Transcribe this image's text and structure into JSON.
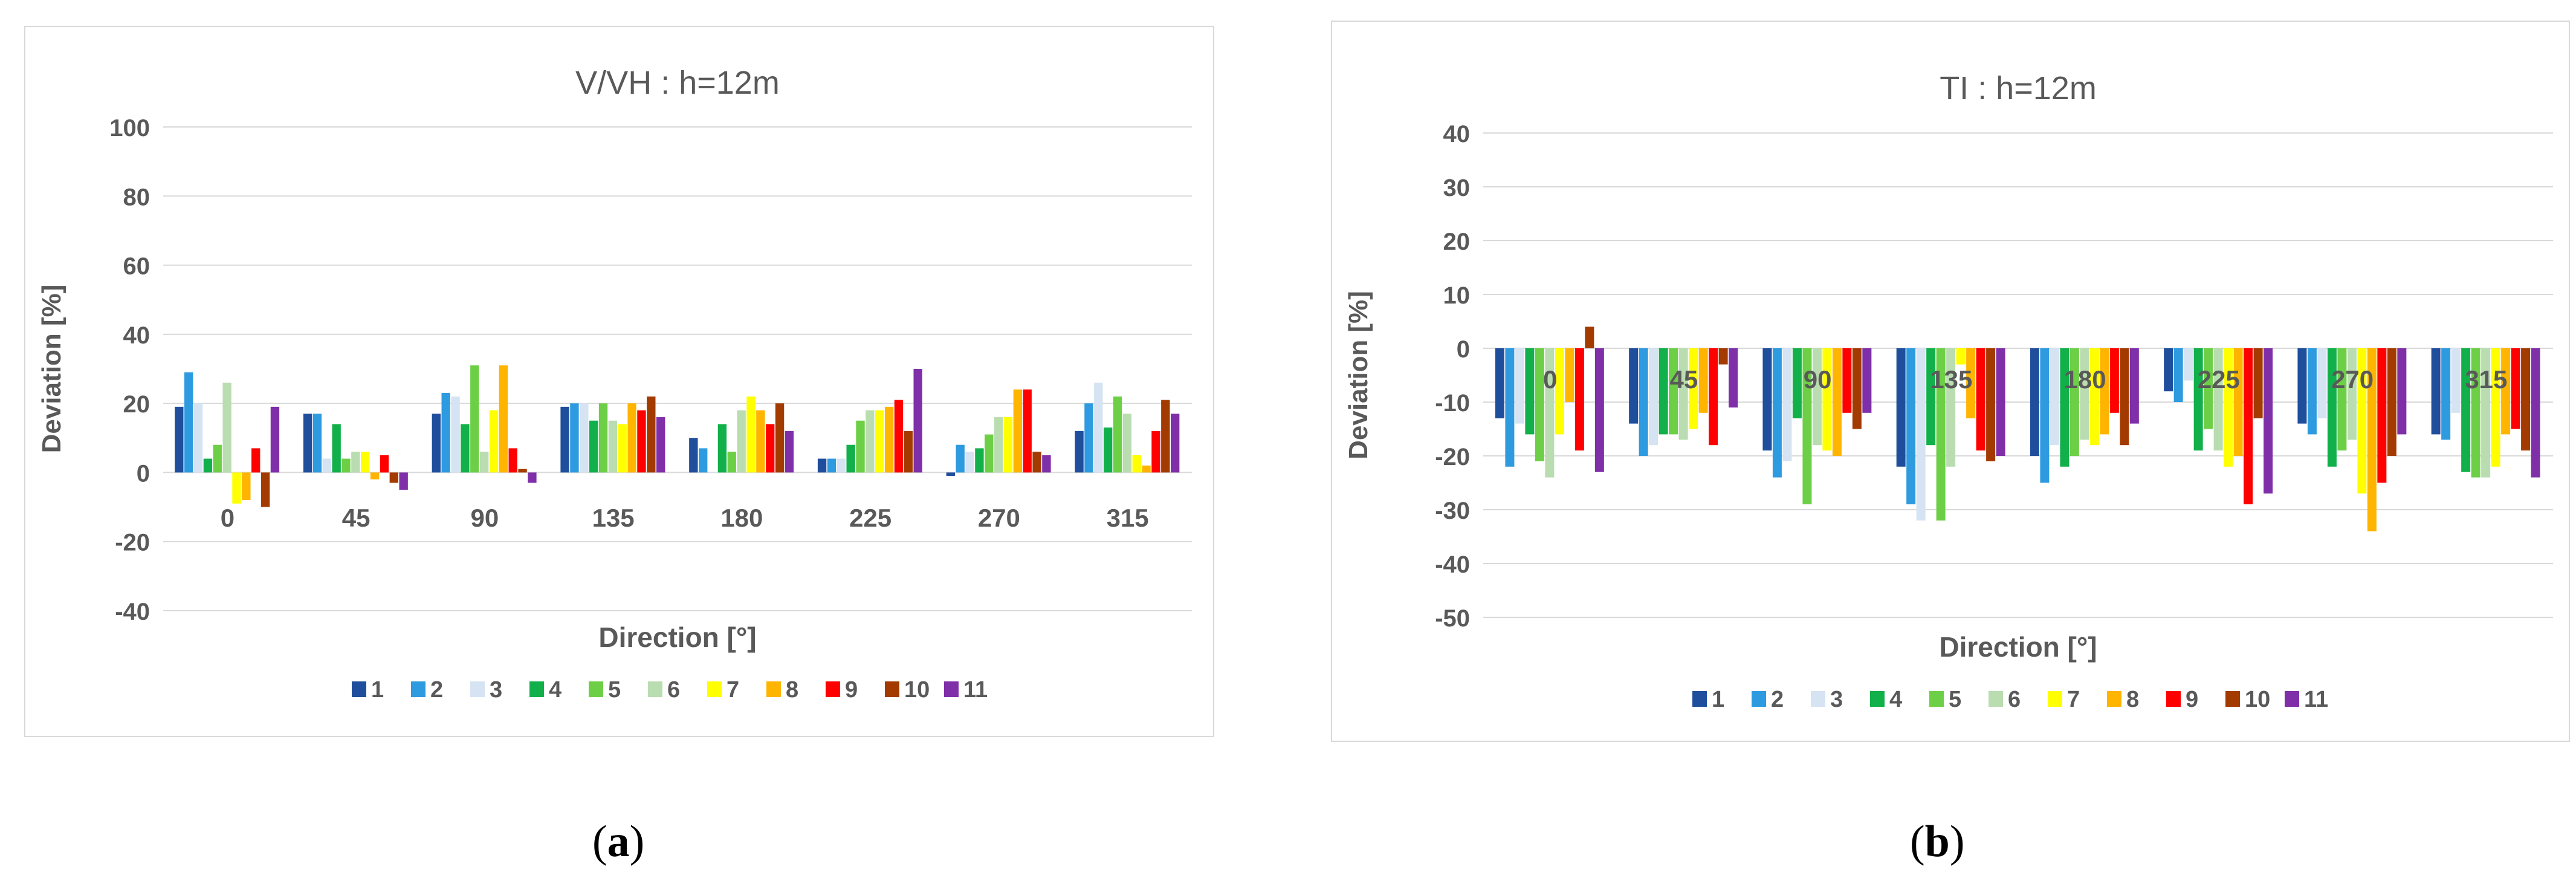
{
  "figure": {
    "panel_labels": [
      {
        "open": "(",
        "letter": "a",
        "close": ")"
      },
      {
        "open": "(",
        "letter": "b",
        "close": ")"
      }
    ]
  },
  "colors": [
    "#1f4e9c",
    "#2e9be0",
    "#d5e3f3",
    "#12b04a",
    "#6dcf46",
    "#b9ddb0",
    "#ffff00",
    "#ffb400",
    "#ff0000",
    "#a33b00",
    "#7f2fa8"
  ],
  "chart_data": [
    {
      "type": "bar",
      "title": "V/VH : h=12m",
      "xlabel": "Direction [°]",
      "ylabel": "Deviation [%]",
      "ylim": [
        -40,
        100
      ],
      "yticks": [
        100,
        80,
        60,
        40,
        20,
        0,
        -20,
        -40
      ],
      "grid": true,
      "legend": "bottom",
      "categories": [
        "0",
        "45",
        "90",
        "135",
        "180",
        "225",
        "270",
        "315"
      ],
      "series": [
        {
          "name": "1",
          "values": [
            19,
            17,
            17,
            19,
            10,
            4,
            -1,
            12
          ]
        },
        {
          "name": "2",
          "values": [
            29,
            17,
            23,
            20,
            7,
            4,
            8,
            20
          ]
        },
        {
          "name": "3",
          "values": [
            20,
            4,
            22,
            20,
            0,
            4,
            6,
            26
          ]
        },
        {
          "name": "4",
          "values": [
            4,
            14,
            14,
            15,
            14,
            8,
            7,
            13
          ]
        },
        {
          "name": "5",
          "values": [
            8,
            4,
            31,
            20,
            6,
            15,
            11,
            22
          ]
        },
        {
          "name": "6",
          "values": [
            26,
            6,
            6,
            15,
            18,
            18,
            16,
            17
          ]
        },
        {
          "name": "7",
          "values": [
            -9,
            6,
            18,
            14,
            22,
            18,
            16,
            5
          ]
        },
        {
          "name": "8",
          "values": [
            -8,
            -2,
            31,
            20,
            18,
            19,
            24,
            2
          ]
        },
        {
          "name": "9",
          "values": [
            7,
            5,
            7,
            18,
            14,
            21,
            24,
            12
          ]
        },
        {
          "name": "10",
          "values": [
            -10,
            -3,
            1,
            22,
            20,
            12,
            6,
            21
          ]
        },
        {
          "name": "11",
          "values": [
            19,
            -5,
            -3,
            16,
            12,
            30,
            5,
            17
          ]
        }
      ]
    },
    {
      "type": "bar",
      "title": "TI : h=12m",
      "xlabel": "Direction [°]",
      "ylabel": "Deviation [%]",
      "ylim": [
        -50,
        40
      ],
      "yticks": [
        40,
        30,
        20,
        10,
        0,
        -10,
        -20,
        -30,
        -40,
        -50
      ],
      "grid": true,
      "legend": "bottom",
      "categories": [
        "0",
        "45",
        "90",
        "135",
        "180",
        "225",
        "270",
        "315"
      ],
      "series": [
        {
          "name": "1",
          "values": [
            -13,
            -14,
            -19,
            -22,
            -20,
            -8,
            -14,
            -16
          ]
        },
        {
          "name": "2",
          "values": [
            -22,
            -20,
            -24,
            -29,
            -25,
            -10,
            -16,
            -17
          ]
        },
        {
          "name": "3",
          "values": [
            -14,
            -18,
            -21,
            -32,
            -18,
            -6,
            -13,
            -12
          ]
        },
        {
          "name": "4",
          "values": [
            -16,
            -16,
            -13,
            -18,
            -22,
            -19,
            -22,
            -23
          ]
        },
        {
          "name": "5",
          "values": [
            -21,
            -16,
            -29,
            -32,
            -20,
            -15,
            -19,
            -24
          ]
        },
        {
          "name": "6",
          "values": [
            -24,
            -17,
            -18,
            -22,
            -17,
            -19,
            -17,
            -24
          ]
        },
        {
          "name": "7",
          "values": [
            -16,
            -15,
            -19,
            -3,
            -18,
            -22,
            -27,
            -22
          ]
        },
        {
          "name": "8",
          "values": [
            -10,
            -12,
            -20,
            -13,
            -16,
            -20,
            -34,
            -16
          ]
        },
        {
          "name": "9",
          "values": [
            -19,
            -18,
            -12,
            -19,
            -12,
            -29,
            -25,
            -15
          ]
        },
        {
          "name": "10",
          "values": [
            4,
            -3,
            -15,
            -21,
            -18,
            -13,
            -20,
            -19
          ]
        },
        {
          "name": "11",
          "values": [
            -23,
            -11,
            -12,
            -20,
            -14,
            -27,
            -16,
            -24
          ]
        }
      ]
    }
  ]
}
